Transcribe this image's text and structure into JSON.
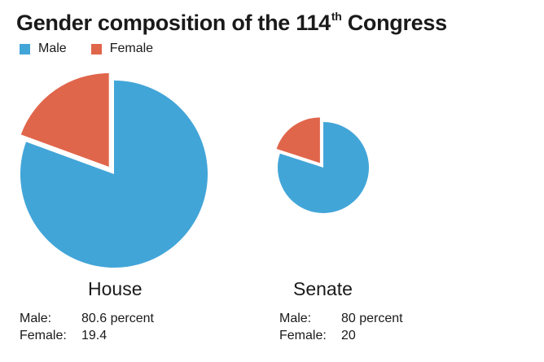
{
  "title": {
    "main": "Gender composition of the 114",
    "superscript": "th",
    "suffix": " Congress"
  },
  "legend": [
    {
      "label": "Male",
      "color": "#42a5d8"
    },
    {
      "label": "Female",
      "color": "#e0664b"
    }
  ],
  "chart_data": [
    {
      "type": "pie",
      "chamber": "House",
      "slices": [
        {
          "name": "Male",
          "value": 80.6,
          "color": "#42a5d8"
        },
        {
          "name": "Female",
          "value": 19.4,
          "color": "#e0664b"
        }
      ],
      "stats": [
        {
          "key": "Male:",
          "value": "80.6 percent"
        },
        {
          "key": "Female:",
          "value": "19.4"
        }
      ]
    },
    {
      "type": "pie",
      "chamber": "Senate",
      "slices": [
        {
          "name": "Male",
          "value": 80,
          "color": "#42a5d8"
        },
        {
          "name": "Female",
          "value": 20,
          "color": "#e0664b"
        }
      ],
      "stats": [
        {
          "key": "Male:",
          "value": "80 percent"
        },
        {
          "key": "Female:",
          "value": "20"
        }
      ]
    }
  ]
}
